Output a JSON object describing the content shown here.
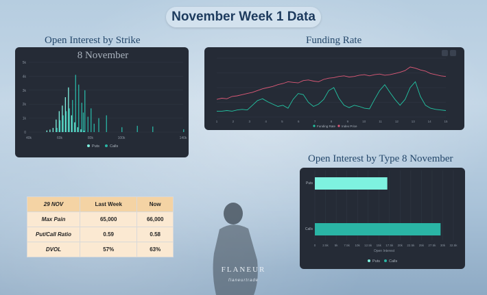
{
  "page": {
    "title": "November Week 1 Data"
  },
  "brand": {
    "name": "FLANEUR",
    "handle": "flaneurtrade"
  },
  "sections": {
    "oi_strike": "Open Interest by Strike",
    "funding": "Funding Rate",
    "oi_type": "Open Interest by Type 8 November"
  },
  "table": {
    "headers": [
      "29 NOV",
      "Last Week",
      "Now"
    ],
    "rows": [
      {
        "label": "Max Pain",
        "last_week": "65,000",
        "now": "66,000"
      },
      {
        "label": "Put/Call Ratio",
        "last_week": "0.59",
        "now": "0.58"
      },
      {
        "label": "DVOL",
        "last_week": "57%",
        "now": "63%"
      }
    ]
  },
  "colors": {
    "panel_bg": "#252b36",
    "calls": "#2ab5a5",
    "puts": "#7ef2e0",
    "price": "#e05a78",
    "funding": "#23c6a4"
  },
  "chart_data": [
    {
      "type": "bar",
      "title": "8 November",
      "x_ticks": [
        "40k",
        "60k",
        "80k",
        "100k",
        "140k"
      ],
      "y_ticks": [
        "0",
        "1k",
        "2k",
        "3k",
        "4k",
        "5k"
      ],
      "ylim": [
        0,
        5000
      ],
      "xlim": [
        40000,
        140000
      ],
      "legend": [
        "Puts",
        "Calls"
      ],
      "series": [
        {
          "name": "Puts",
          "values": [
            [
              52000,
              120
            ],
            [
              54000,
              180
            ],
            [
              56000,
              300
            ],
            [
              58000,
              900
            ],
            [
              60000,
              1500
            ],
            [
              62000,
              1900
            ],
            [
              64000,
              2500
            ],
            [
              66000,
              3200
            ],
            [
              68000,
              1200
            ],
            [
              70000,
              700
            ],
            [
              72000,
              350
            ],
            [
              74000,
              200
            ],
            [
              76000,
              100
            ]
          ]
        },
        {
          "name": "Calls",
          "values": [
            [
              58000,
              300
            ],
            [
              60000,
              850
            ],
            [
              62000,
              1200
            ],
            [
              64000,
              1500
            ],
            [
              66000,
              1700
            ],
            [
              68000,
              2300
            ],
            [
              70000,
              4100
            ],
            [
              72000,
              3400
            ],
            [
              74000,
              2100
            ],
            [
              75000,
              1400
            ],
            [
              76000,
              3000
            ],
            [
              78000,
              1100
            ],
            [
              80000,
              1700
            ],
            [
              82000,
              600
            ],
            [
              85000,
              1000
            ],
            [
              90000,
              1200
            ],
            [
              100000,
              350
            ],
            [
              110000,
              450
            ],
            [
              120000,
              400
            ],
            [
              140000,
              200
            ]
          ]
        }
      ]
    },
    {
      "type": "line",
      "x_ticks": [
        "1",
        "2",
        "3",
        "4",
        "5",
        "6",
        "7",
        "8",
        "9",
        "10",
        "11",
        "12",
        "13",
        "14",
        "15"
      ],
      "legend": [
        "Funding Rate",
        "Index Price"
      ],
      "series": [
        {
          "name": "Index Price",
          "values": [
            0.3,
            0.32,
            0.31,
            0.35,
            0.36,
            0.38,
            0.4,
            0.42,
            0.45,
            0.48,
            0.5,
            0.52,
            0.55,
            0.57,
            0.6,
            0.59,
            0.58,
            0.62,
            0.63,
            0.61,
            0.6,
            0.64,
            0.66,
            0.67,
            0.69,
            0.7,
            0.68,
            0.69,
            0.71,
            0.72,
            0.7,
            0.72,
            0.73,
            0.71,
            0.72,
            0.74,
            0.76,
            0.79,
            0.85,
            0.83,
            0.8,
            0.78,
            0.74,
            0.72,
            0.7,
            0.69
          ]
        },
        {
          "name": "Funding Rate",
          "values": [
            0.1,
            0.1,
            0.11,
            0.1,
            0.12,
            0.13,
            0.12,
            0.2,
            0.28,
            0.31,
            0.26,
            0.22,
            0.18,
            0.2,
            0.15,
            0.3,
            0.4,
            0.38,
            0.25,
            0.18,
            0.22,
            0.3,
            0.45,
            0.5,
            0.32,
            0.2,
            0.16,
            0.2,
            0.18,
            0.15,
            0.14,
            0.3,
            0.45,
            0.55,
            0.42,
            0.3,
            0.2,
            0.3,
            0.5,
            0.6,
            0.35,
            0.2,
            0.15,
            0.13,
            0.12,
            0.11
          ]
        }
      ]
    },
    {
      "type": "bar",
      "orientation": "horizontal",
      "categories": [
        "Puts",
        "Calls"
      ],
      "values": [
        17000,
        29500
      ],
      "x_ticks": [
        "0",
        "2.5k",
        "5k",
        "7.5k",
        "10k",
        "12.5k",
        "15k",
        "17.5k",
        "20k",
        "22.5k",
        "25k",
        "27.5k",
        "30k",
        "32.5k"
      ],
      "xlim": [
        0,
        32500
      ],
      "xlabel": "Open Interest",
      "legend": [
        "Puts",
        "Calls"
      ]
    }
  ]
}
